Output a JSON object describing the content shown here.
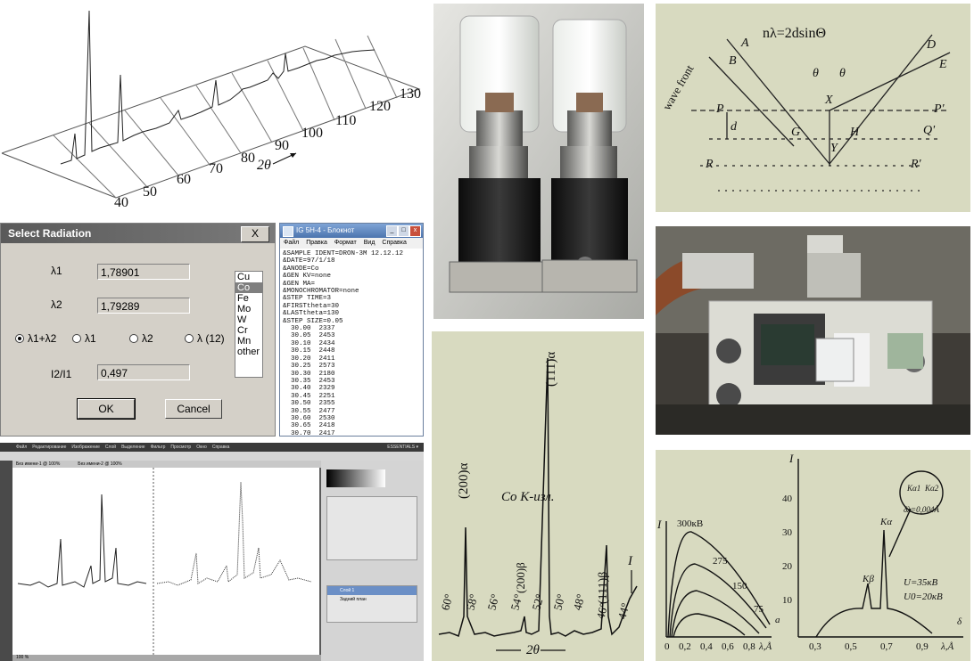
{
  "xrd3d": {
    "ticks": [
      "40",
      "50",
      "60",
      "70",
      "80",
      "90",
      "100",
      "110",
      "120",
      "130"
    ],
    "axis_label": "2θ"
  },
  "dialog": {
    "title": "Select Radiation",
    "close": "X",
    "l1_label": "λ1",
    "l1_value": "1,78901",
    "l2_label": "λ2",
    "l2_value": "1,79289",
    "radios": [
      "λ1+λ2",
      "λ1",
      "λ2",
      "λ (12)"
    ],
    "ratio_label": "I2/I1",
    "ratio_value": "0,497",
    "anodes": [
      "Cu",
      "Co",
      "Fe",
      "Mo",
      "W",
      "Cr",
      "Mn",
      "other"
    ],
    "selected_anode": "Co",
    "ok": "OK",
    "cancel": "Cancel"
  },
  "notepad": {
    "title": "IG 5H-4 - Блокнот",
    "menu": [
      "Файл",
      "Правка",
      "Формат",
      "Вид",
      "Справка"
    ],
    "lines": [
      "&SAMPLE IDENT=DRON-3M 12.12.12",
      "&DATE=97/1/18",
      "&ANODE=Co",
      "&GEN KV=none",
      "&GEN MA=",
      "&MONOCHROMATOR=none",
      "&STEP TIME=3",
      "&FIRSTtheta=30",
      "&LASTtheta=130",
      "&STEP SIZE=0.05",
      "  30.00  2337",
      "  30.05  2453",
      "  30.10  2434",
      "  30.15  2448",
      "  30.20  2411",
      "  30.25  2573",
      "  30.30  2180",
      "  30.35  2453",
      "  30.40  2329",
      "  30.45  2251",
      "  30.50  2355",
      "  30.55  2477",
      "  30.60  2530",
      "  30.65  2418",
      "  30.70  2417",
      "  30.75  2402",
      "  30.80  2386",
      "  30.85  2448"
    ]
  },
  "bragg": {
    "formula": "nλ=2dsinΘ",
    "labels": [
      "A",
      "B",
      "D",
      "E",
      "P",
      "P'",
      "Q'",
      "R",
      "R'",
      "X",
      "Y",
      "G",
      "H",
      "d",
      "θ",
      "θ"
    ],
    "wavefront": "wave front"
  },
  "film": {
    "peaks": [
      "(200)α",
      "(200)β",
      "(111)α",
      "(111)β"
    ],
    "note": "Co K-изл.",
    "angles": [
      "60°",
      "58°",
      "56°",
      "54°",
      "52°",
      "50°",
      "48°",
      "46°",
      "44°"
    ],
    "axis": "2θ",
    "intensity": "I"
  },
  "spectrum": {
    "left": {
      "ylabel": "I",
      "curves": [
        "300кВ",
        "275",
        "150",
        "75"
      ],
      "xticks": [
        "0",
        "0,2",
        "0,4",
        "0,6",
        "0,8"
      ],
      "xlabel": "λ,Å",
      "tag": "a"
    },
    "right": {
      "ylabel": "I",
      "yticks": [
        "10",
        "20",
        "30",
        "40"
      ],
      "xticks": [
        "0,3",
        "0,5",
        "0,7",
        "0,9"
      ],
      "xlabel": "λ,Å",
      "peaks": [
        "Kβ",
        "Kα"
      ],
      "inset": [
        "Kα1",
        "Kα2",
        "δλ=0,004Å"
      ],
      "conditions": [
        "U=35кВ",
        "U0=20кВ"
      ],
      "tag": "δ"
    }
  },
  "ps": {
    "menu": [
      "Файл",
      "Редактирование",
      "Изображение",
      "Слой",
      "Выделение",
      "Фильтр",
      "Просмотр",
      "Окно",
      "Справка"
    ],
    "essentials": "ESSENTIALS ▾",
    "tabs": [
      "Без имени-1 @ 100%",
      "Без имени-2 @ 100%"
    ],
    "layers": [
      "Слой 1",
      "Задний план"
    ],
    "zoom": "100 %"
  },
  "colors": {
    "paper": "#d8dac0",
    "dialog": "#d4d0c8",
    "titlebar": "#6a6a6a"
  }
}
